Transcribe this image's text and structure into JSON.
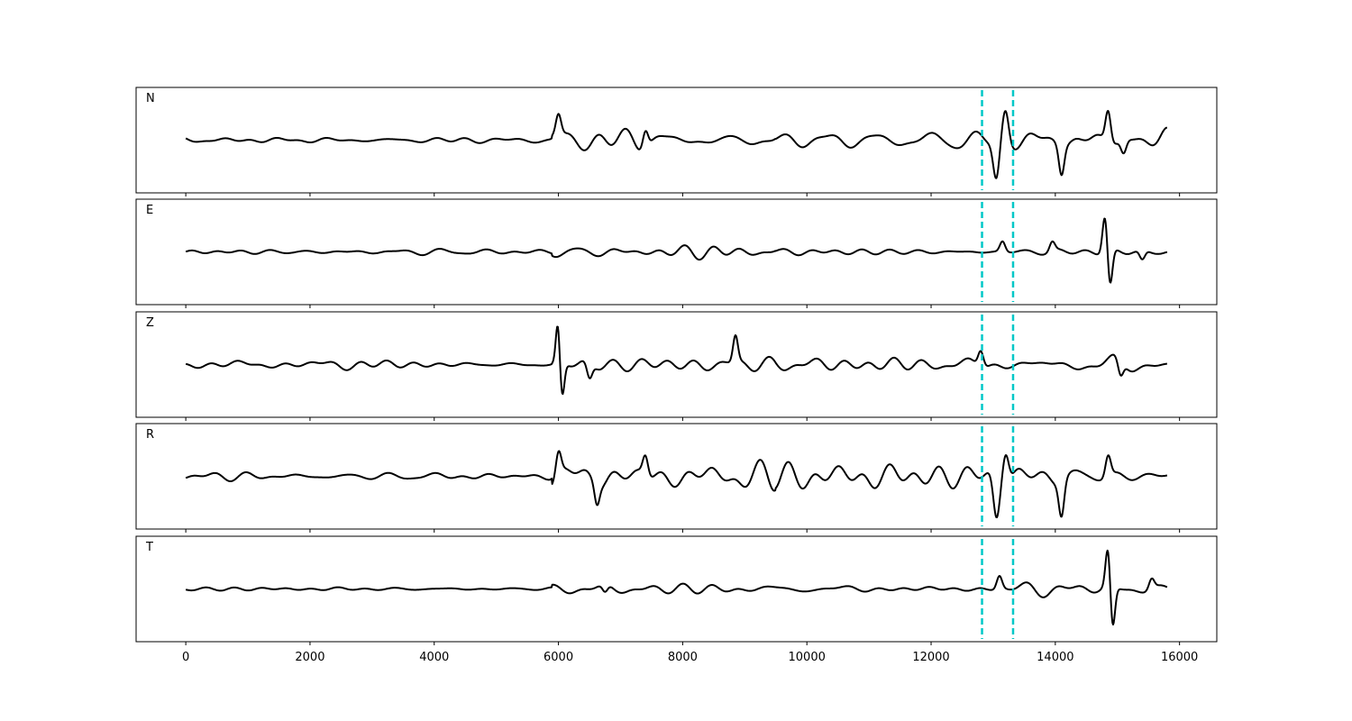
{
  "chart_data": {
    "type": "line",
    "xlim": [
      -800,
      16600
    ],
    "xticks": [
      0,
      2000,
      4000,
      6000,
      8000,
      10000,
      12000,
      14000,
      16000
    ],
    "xtick_labels": [
      "0",
      "2000",
      "4000",
      "6000",
      "8000",
      "10000",
      "12000",
      "14000",
      "16000"
    ],
    "x_range": [
      0,
      15800
    ],
    "grid": false,
    "line_color": "#000000",
    "marker_color": "#00c8c8",
    "marker_style": "dashed",
    "markers_x": [
      12820,
      13320
    ],
    "panels": [
      {
        "label": "N",
        "events": [
          {
            "x": 6000,
            "amp": 0.4,
            "w": 60
          },
          {
            "x": 7400,
            "amp": 0.35,
            "w": 60
          },
          {
            "x": 13050,
            "amp": -0.75,
            "w": 70
          },
          {
            "x": 13200,
            "amp": 0.55,
            "w": 70
          },
          {
            "x": 14100,
            "amp": -0.55,
            "w": 60
          },
          {
            "x": 14850,
            "amp": 0.6,
            "w": 60
          },
          {
            "x": 15100,
            "amp": -0.25,
            "w": 60
          }
        ],
        "noise": [
          0.08,
          0.28,
          0.22,
          0.22
        ]
      },
      {
        "label": "E",
        "events": [
          {
            "x": 13150,
            "amp": 0.2,
            "w": 60
          },
          {
            "x": 13950,
            "amp": 0.18,
            "w": 60
          },
          {
            "x": 14800,
            "amp": 0.72,
            "w": 55
          },
          {
            "x": 14880,
            "amp": -0.7,
            "w": 55
          },
          {
            "x": 15400,
            "amp": -0.18,
            "w": 60
          }
        ],
        "noise": [
          0.05,
          0.12,
          0.09,
          0.1
        ]
      },
      {
        "label": "Z",
        "events": [
          {
            "x": 5990,
            "amp": 0.75,
            "w": 45
          },
          {
            "x": 6060,
            "amp": -0.65,
            "w": 50
          },
          {
            "x": 6500,
            "amp": -0.3,
            "w": 60
          },
          {
            "x": 8850,
            "amp": 0.5,
            "w": 55
          },
          {
            "x": 12800,
            "amp": 0.3,
            "w": 60
          },
          {
            "x": 15050,
            "amp": -0.3,
            "w": 60
          }
        ],
        "noise": [
          0.08,
          0.2,
          0.18,
          0.18
        ]
      },
      {
        "label": "R",
        "events": [
          {
            "x": 6000,
            "amp": 0.45,
            "w": 60
          },
          {
            "x": 6620,
            "amp": -0.35,
            "w": 55
          },
          {
            "x": 7400,
            "amp": 0.38,
            "w": 60
          },
          {
            "x": 13050,
            "amp": -0.75,
            "w": 70
          },
          {
            "x": 13200,
            "amp": 0.6,
            "w": 70
          },
          {
            "x": 14100,
            "amp": -0.65,
            "w": 60
          },
          {
            "x": 14850,
            "amp": 0.4,
            "w": 60
          }
        ],
        "noise": [
          0.09,
          0.28,
          0.24,
          0.24
        ]
      },
      {
        "label": "T",
        "events": [
          {
            "x": 6750,
            "amp": -0.15,
            "w": 60
          },
          {
            "x": 13100,
            "amp": 0.25,
            "w": 60
          },
          {
            "x": 14850,
            "amp": 0.8,
            "w": 55
          },
          {
            "x": 14920,
            "amp": -0.85,
            "w": 55
          },
          {
            "x": 15550,
            "amp": 0.2,
            "w": 60
          }
        ],
        "noise": [
          0.04,
          0.1,
          0.1,
          0.12
        ]
      }
    ]
  }
}
